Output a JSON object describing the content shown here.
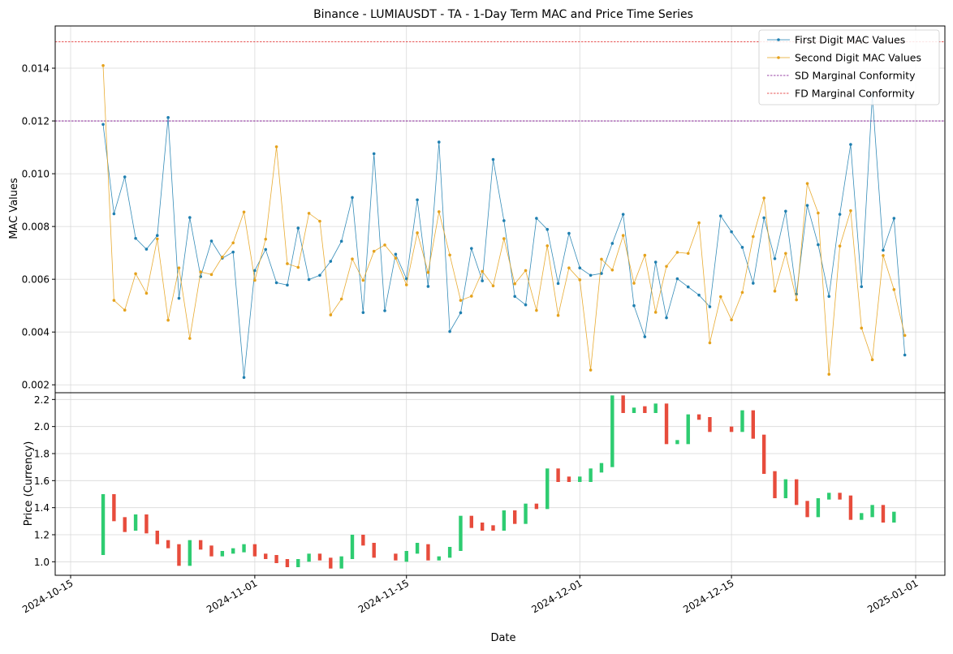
{
  "chart_data": [
    {
      "type": "line",
      "title": "Binance - LUMIAUSDT - TA - 1-Day Term MAC and Price Time Series",
      "ylabel": "MAC Values",
      "ylim": [
        0.0017,
        0.0156
      ],
      "yticks": [
        "0.002",
        "0.004",
        "0.006",
        "0.008",
        "0.010",
        "0.012",
        "0.014"
      ],
      "x_start": "2024-10-18",
      "grid": true,
      "legend_position": "top-right",
      "series": [
        {
          "name": "First Digit MAC Values",
          "color": "#1f7fb0",
          "values": [
            0.01187,
            0.00848,
            0.00988,
            0.00755,
            0.00714,
            0.00766,
            0.01213,
            0.00528,
            0.00834,
            0.0061,
            0.00745,
            0.0068,
            0.00703,
            0.00228,
            0.00633,
            0.00713,
            0.00587,
            0.00578,
            0.00794,
            0.00599,
            0.00615,
            0.00668,
            0.00744,
            0.0091,
            0.00474,
            0.01076,
            0.00481,
            0.00695,
            0.00602,
            0.00901,
            0.00573,
            0.0112,
            0.00402,
            0.00473,
            0.00717,
            0.00594,
            0.01054,
            0.00822,
            0.00535,
            0.00503,
            0.00831,
            0.00789,
            0.00584,
            0.00774,
            0.00643,
            0.00615,
            0.00622,
            0.00736,
            0.00846,
            0.005,
            0.00382,
            0.00665,
            0.00454,
            0.00602,
            0.00571,
            0.0054,
            0.00496,
            0.0084,
            0.0078,
            0.00721,
            0.00585,
            0.00833,
            0.00678,
            0.00858,
            0.00544,
            0.0088,
            0.00731,
            0.00535,
            0.00846,
            0.01111,
            0.00572,
            0.01297,
            0.0071,
            0.00831,
            0.00313
          ]
        },
        {
          "name": "Second Digit MAC Values",
          "color": "#e5a21c",
          "values": [
            0.0141,
            0.0052,
            0.00483,
            0.00621,
            0.00547,
            0.00753,
            0.00445,
            0.00643,
            0.00376,
            0.00628,
            0.00618,
            0.00684,
            0.00738,
            0.00855,
            0.00596,
            0.00752,
            0.01102,
            0.00659,
            0.00645,
            0.0085,
            0.0082,
            0.00465,
            0.00525,
            0.00677,
            0.00596,
            0.00706,
            0.0073,
            0.0068,
            0.00579,
            0.00776,
            0.00626,
            0.00856,
            0.00692,
            0.0052,
            0.00536,
            0.0063,
            0.00575,
            0.00754,
            0.00583,
            0.00633,
            0.00482,
            0.00727,
            0.00463,
            0.00643,
            0.00598,
            0.00256,
            0.00676,
            0.00635,
            0.00766,
            0.00585,
            0.00691,
            0.00475,
            0.00649,
            0.00702,
            0.00698,
            0.00814,
            0.00359,
            0.00534,
            0.00446,
            0.0055,
            0.00762,
            0.00908,
            0.00555,
            0.00698,
            0.00522,
            0.00963,
            0.00851,
            0.0024,
            0.00726,
            0.0086,
            0.00415,
            0.00295,
            0.0069,
            0.00561,
            0.00387
          ]
        }
      ],
      "reference_lines": [
        {
          "name": "SD Marginal Conformity",
          "value": 0.012,
          "color": "#7a0a8a"
        },
        {
          "name": "FD Marginal Conformity",
          "value": 0.015,
          "color": "#e02020"
        }
      ]
    },
    {
      "type": "candlestick",
      "xlabel": "Date",
      "ylabel": "Price (Currency)",
      "ylim": [
        0.9,
        2.25
      ],
      "yticks": [
        "1.0",
        "1.2",
        "1.4",
        "1.6",
        "1.8",
        "2.0",
        "2.2"
      ],
      "xticks": [
        {
          "date": "2024-10-15",
          "label": "2024-10-15"
        },
        {
          "date": "2024-11-01",
          "label": "2024-11-01"
        },
        {
          "date": "2024-11-15",
          "label": "2024-11-15"
        },
        {
          "date": "2024-12-01",
          "label": "2024-12-01"
        },
        {
          "date": "2024-12-15",
          "label": "2024-12-15"
        },
        {
          "date": "2025-01-01",
          "label": "2025-01-01"
        }
      ],
      "up_color": "#2ecc71",
      "down_color": "#e74c3c",
      "x_start": "2024-10-18",
      "candles": [
        {
          "open": 1.05,
          "close": 1.5
        },
        {
          "open": 1.5,
          "close": 1.3
        },
        {
          "open": 1.33,
          "close": 1.22
        },
        {
          "open": 1.23,
          "close": 1.35
        },
        {
          "open": 1.35,
          "close": 1.21
        },
        {
          "open": 1.23,
          "close": 1.13
        },
        {
          "open": 1.16,
          "close": 1.1
        },
        {
          "open": 1.13,
          "close": 0.97
        },
        {
          "open": 0.97,
          "close": 1.16
        },
        {
          "open": 1.16,
          "close": 1.09
        },
        {
          "open": 1.12,
          "close": 1.04
        },
        {
          "open": 1.04,
          "close": 1.08
        },
        {
          "open": 1.06,
          "close": 1.1
        },
        {
          "open": 1.07,
          "close": 1.13
        },
        {
          "open": 1.13,
          "close": 1.04
        },
        {
          "open": 1.06,
          "close": 1.02
        },
        {
          "open": 1.05,
          "close": 0.99
        },
        {
          "open": 1.02,
          "close": 0.96
        },
        {
          "open": 0.96,
          "close": 1.02
        },
        {
          "open": 1.0,
          "close": 1.06
        },
        {
          "open": 1.06,
          "close": 1.01
        },
        {
          "open": 1.03,
          "close": 0.95
        },
        {
          "open": 0.95,
          "close": 1.04
        },
        {
          "open": 1.02,
          "close": 1.2
        },
        {
          "open": 1.2,
          "close": 1.12
        },
        {
          "open": 1.14,
          "close": 1.03
        },
        {
          "open": null,
          "close": null
        },
        {
          "open": 1.06,
          "close": 1.01
        },
        {
          "open": 1.0,
          "close": 1.08
        },
        {
          "open": 1.06,
          "close": 1.14
        },
        {
          "open": 1.13,
          "close": 1.01
        },
        {
          "open": 1.01,
          "close": 1.04
        },
        {
          "open": 1.03,
          "close": 1.11
        },
        {
          "open": 1.08,
          "close": 1.34
        },
        {
          "open": 1.34,
          "close": 1.25
        },
        {
          "open": 1.29,
          "close": 1.23
        },
        {
          "open": 1.27,
          "close": 1.23
        },
        {
          "open": 1.23,
          "close": 1.38
        },
        {
          "open": 1.38,
          "close": 1.28
        },
        {
          "open": 1.28,
          "close": 1.43
        },
        {
          "open": 1.43,
          "close": 1.39
        },
        {
          "open": 1.39,
          "close": 1.69
        },
        {
          "open": 1.69,
          "close": 1.59
        },
        {
          "open": 1.63,
          "close": 1.59
        },
        {
          "open": 1.59,
          "close": 1.63
        },
        {
          "open": 1.59,
          "close": 1.69
        },
        {
          "open": 1.66,
          "close": 1.73
        },
        {
          "open": 1.7,
          "close": 2.23
        },
        {
          "open": 2.23,
          "close": 2.1
        },
        {
          "open": 2.1,
          "close": 2.14
        },
        {
          "open": 2.15,
          "close": 2.1
        },
        {
          "open": 2.1,
          "close": 2.17
        },
        {
          "open": 2.17,
          "close": 1.87
        },
        {
          "open": 1.87,
          "close": 1.9
        },
        {
          "open": 1.87,
          "close": 2.09
        },
        {
          "open": 2.09,
          "close": 2.05
        },
        {
          "open": 2.07,
          "close": 1.96
        },
        {
          "open": null,
          "close": null
        },
        {
          "open": 2.0,
          "close": 1.96
        },
        {
          "open": 1.96,
          "close": 2.12
        },
        {
          "open": 2.12,
          "close": 1.91
        },
        {
          "open": 1.94,
          "close": 1.65
        },
        {
          "open": 1.67,
          "close": 1.47
        },
        {
          "open": 1.47,
          "close": 1.61
        },
        {
          "open": 1.61,
          "close": 1.42
        },
        {
          "open": 1.45,
          "close": 1.33
        },
        {
          "open": 1.33,
          "close": 1.47
        },
        {
          "open": 1.46,
          "close": 1.51
        },
        {
          "open": 1.51,
          "close": 1.46
        },
        {
          "open": 1.49,
          "close": 1.31
        },
        {
          "open": 1.31,
          "close": 1.36
        },
        {
          "open": 1.33,
          "close": 1.42
        },
        {
          "open": 1.42,
          "close": 1.29
        },
        {
          "open": 1.29,
          "close": 1.37
        },
        {
          "open": null,
          "close": null
        }
      ]
    }
  ]
}
